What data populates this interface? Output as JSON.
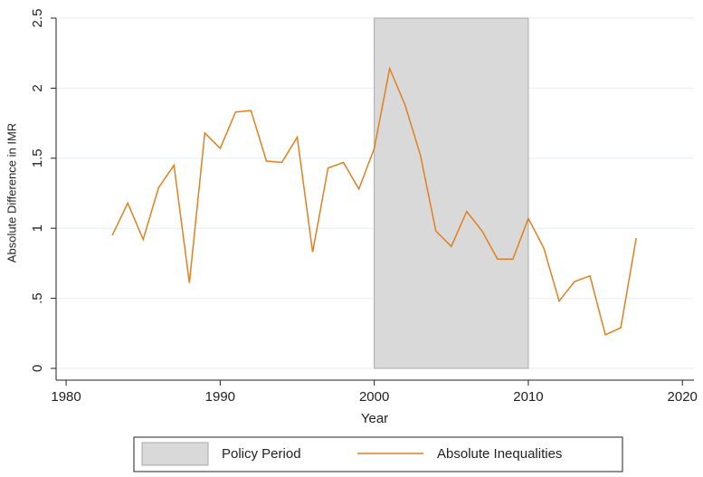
{
  "chart_data": {
    "type": "line",
    "xlabel": "Year",
    "ylabel": "Absolute Difference in IMR",
    "x": [
      1983,
      1984,
      1985,
      1986,
      1987,
      1988,
      1989,
      1990,
      1991,
      1992,
      1993,
      1994,
      1995,
      1996,
      1997,
      1998,
      1999,
      2000,
      2001,
      2002,
      2003,
      2004,
      2005,
      2006,
      2007,
      2008,
      2009,
      2010,
      2011,
      2012,
      2013,
      2014,
      2015,
      2016,
      2017
    ],
    "series": [
      {
        "name": "Absolute Inequalities",
        "color": "#e0801f",
        "values": [
          0.95,
          1.18,
          0.92,
          1.29,
          1.45,
          0.61,
          1.68,
          1.57,
          1.83,
          1.84,
          1.48,
          1.47,
          1.65,
          0.83,
          1.43,
          1.47,
          1.28,
          1.57,
          2.14,
          1.88,
          1.52,
          0.98,
          0.87,
          1.12,
          0.98,
          0.78,
          0.78,
          1.07,
          0.86,
          0.48,
          0.62,
          0.66,
          0.24,
          0.29,
          0.93
        ]
      }
    ],
    "shaded_region": {
      "name": "Policy Period",
      "x": [
        2000,
        2010
      ],
      "y": [
        0,
        2.5
      ],
      "color": "#d9d9d9"
    },
    "xlim": [
      1979.35,
      2020.75
    ],
    "ylim": [
      -0.084,
      2.5
    ],
    "xticks": [
      1980,
      1990,
      2000,
      2010,
      2020
    ],
    "yticks": [
      0,
      {
        "value": 0.5,
        "label": ".5"
      },
      1,
      1.5,
      2,
      2.5
    ],
    "grid": true,
    "legend": "bottom"
  }
}
